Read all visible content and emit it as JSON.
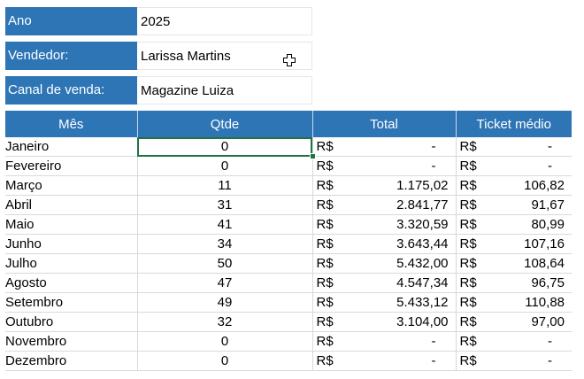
{
  "filters": {
    "ano": {
      "label": "Ano",
      "value": "2025"
    },
    "vendedor": {
      "label": "Vendedor:",
      "value": "Larissa Martins"
    },
    "canal": {
      "label": "Canal de venda:",
      "value": "Magazine Luiza"
    }
  },
  "table": {
    "headers": {
      "mes": "Mês",
      "qtde": "Qtde",
      "total": "Total",
      "ticket": "Ticket médio"
    },
    "currency": "R$",
    "rows": [
      {
        "mes": "Janeiro",
        "qtde": "0",
        "total": "-",
        "ticket": "-"
      },
      {
        "mes": "Fevereiro",
        "qtde": "0",
        "total": "-",
        "ticket": "-"
      },
      {
        "mes": "Março",
        "qtde": "11",
        "total": "1.175,02",
        "ticket": "106,82"
      },
      {
        "mes": "Abril",
        "qtde": "31",
        "total": "2.841,77",
        "ticket": "91,67"
      },
      {
        "mes": "Maio",
        "qtde": "41",
        "total": "3.320,59",
        "ticket": "80,99"
      },
      {
        "mes": "Junho",
        "qtde": "34",
        "total": "3.643,44",
        "ticket": "107,16"
      },
      {
        "mes": "Julho",
        "qtde": "50",
        "total": "5.432,00",
        "ticket": "108,64"
      },
      {
        "mes": "Agosto",
        "qtde": "47",
        "total": "4.547,34",
        "ticket": "96,75"
      },
      {
        "mes": "Setembro",
        "qtde": "49",
        "total": "5.433,12",
        "ticket": "110,88"
      },
      {
        "mes": "Outubro",
        "qtde": "32",
        "total": "3.104,00",
        "ticket": "97,00"
      },
      {
        "mes": "Novembro",
        "qtde": "0",
        "total": "-",
        "ticket": "-"
      },
      {
        "mes": "Dezembro",
        "qtde": "0",
        "total": "-",
        "ticket": "-"
      }
    ]
  },
  "selection": {
    "row": 0,
    "column": "qtde"
  },
  "colors": {
    "header_bg": "#2e75b6",
    "selection": "#217346"
  },
  "icons": {
    "cursor": "excel-cross-cursor-icon"
  }
}
